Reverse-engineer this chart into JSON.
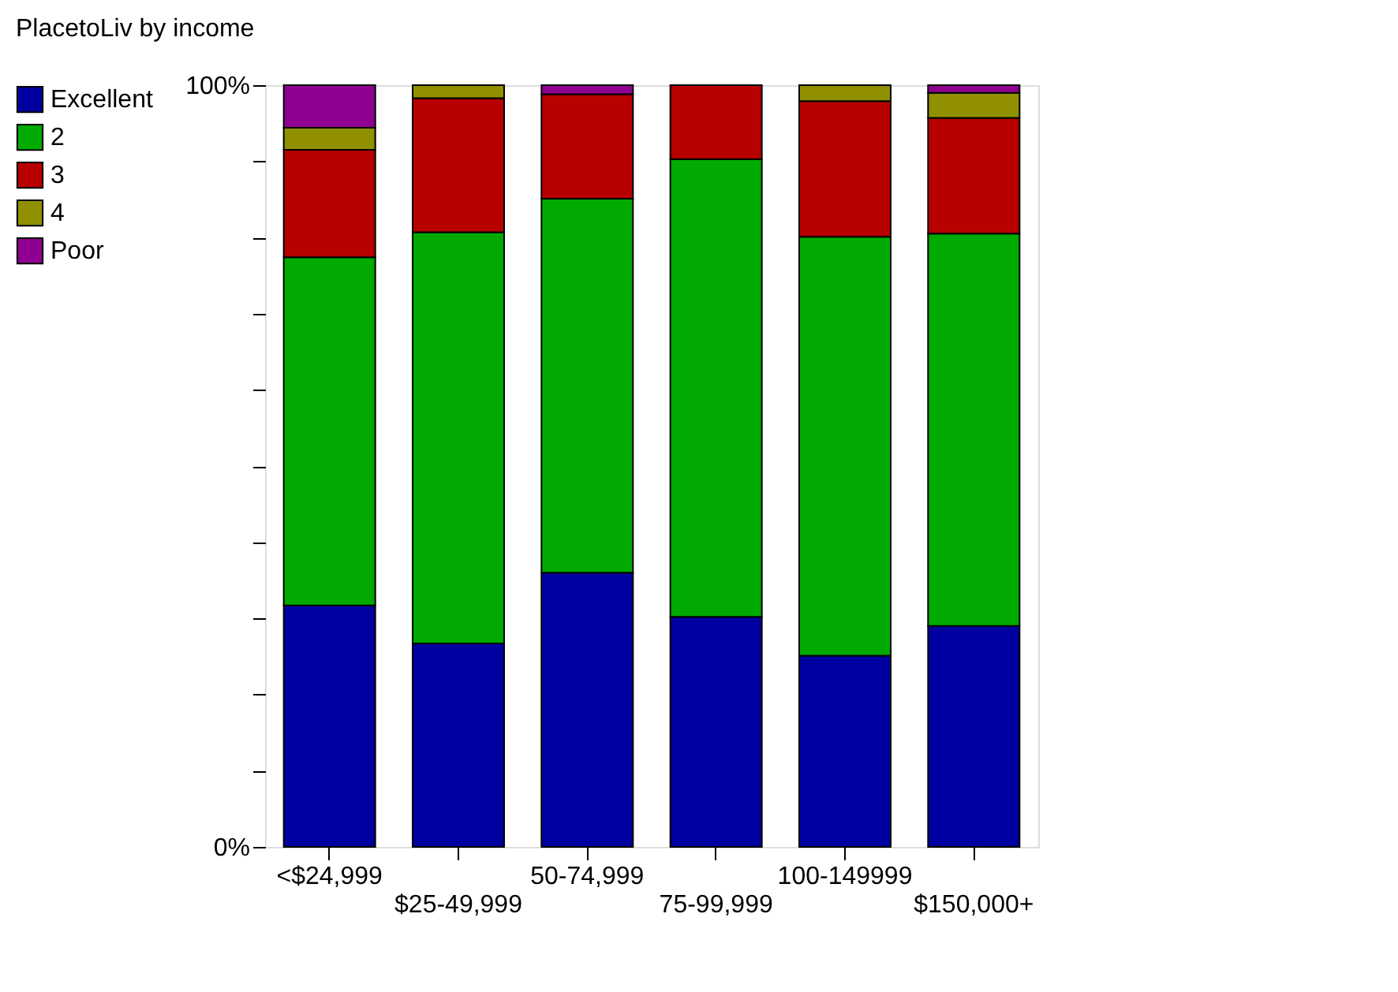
{
  "chart_data": {
    "type": "bar",
    "title": "PlacetoLiv by income",
    "stacked": true,
    "legend": "top left",
    "grid": false,
    "tick_labels": "xy",
    "categories": [
      "<$24,999",
      "$25-49,999",
      "50-74,999",
      "75-99,999",
      "100-149999",
      "$150,000+"
    ],
    "series": [
      {
        "name": "Excellent",
        "color": "#0000a0",
        "values": [
          31.7,
          26.7,
          36.0,
          30.2,
          25.1,
          29.0
        ]
      },
      {
        "name": "2",
        "color": "#00aa00",
        "values": [
          45.7,
          54.0,
          49.1,
          60.1,
          55.0,
          51.5
        ]
      },
      {
        "name": "3",
        "color": "#b80000",
        "values": [
          14.1,
          17.6,
          13.7,
          9.7,
          17.8,
          15.2
        ]
      },
      {
        "name": "4",
        "color": "#909000",
        "values": [
          2.9,
          1.7,
          null,
          null,
          2.1,
          3.3
        ]
      },
      {
        "name": "Poor",
        "color": "#900090",
        "values": [
          5.6,
          null,
          1.2,
          null,
          null,
          1.0
        ]
      }
    ],
    "ylim": [
      0,
      100
    ],
    "yticks": [
      {
        "value": 0,
        "label": "0%"
      },
      {
        "value": 10,
        "label": null
      },
      {
        "value": 20,
        "label": null
      },
      {
        "value": 30,
        "label": null
      },
      {
        "value": 40,
        "label": null
      },
      {
        "value": 50,
        "label": null
      },
      {
        "value": 60,
        "label": null
      },
      {
        "value": 70,
        "label": null
      },
      {
        "value": 80,
        "label": null
      },
      {
        "value": 90,
        "label": null
      },
      {
        "value": 100,
        "label": "100%"
      }
    ]
  }
}
